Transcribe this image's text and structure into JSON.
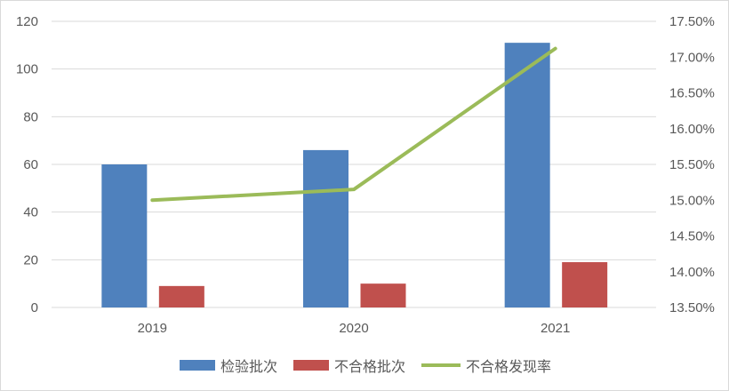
{
  "chart_data": {
    "type": "bar",
    "categories": [
      "2019",
      "2020",
      "2021"
    ],
    "series": [
      {
        "name": "检验批次",
        "kind": "bar",
        "axis": "left",
        "color": "#4F81BD",
        "values": [
          60,
          66,
          111
        ]
      },
      {
        "name": "不合格批次",
        "kind": "bar",
        "axis": "left",
        "color": "#C0504D",
        "values": [
          9,
          10,
          19
        ]
      },
      {
        "name": "不合格发现率",
        "kind": "line",
        "axis": "right",
        "color": "#9BBB59",
        "values": [
          15.0,
          15.15,
          17.12
        ]
      }
    ],
    "left_axis": {
      "min": 0,
      "max": 120,
      "ticks": [
        "0",
        "20",
        "40",
        "60",
        "80",
        "100",
        "120"
      ]
    },
    "right_axis": {
      "min": 13.5,
      "max": 17.5,
      "ticks": [
        "13.50%",
        "14.00%",
        "14.50%",
        "15.00%",
        "15.50%",
        "16.00%",
        "16.50%",
        "17.00%",
        "17.50%"
      ]
    },
    "grid": true,
    "legend_position": "bottom"
  }
}
